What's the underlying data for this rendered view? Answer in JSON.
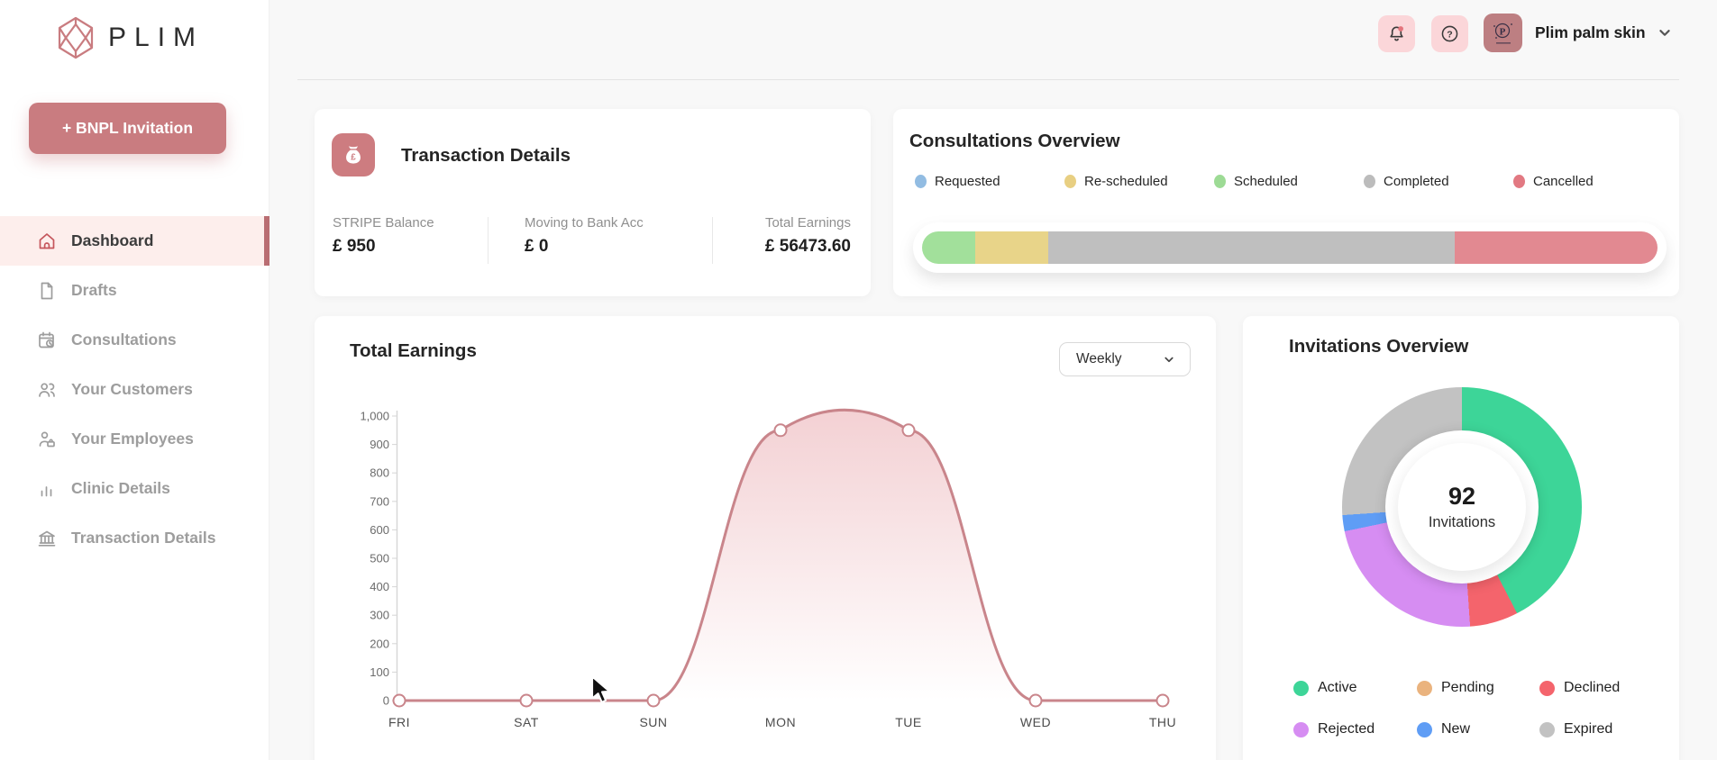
{
  "brand": {
    "name": "PLIM",
    "logo_icon": "gem-icon",
    "accent_color": "#c97c80"
  },
  "sidebar": {
    "cta_label": "+ BNPL Invitation",
    "items": [
      {
        "label": "Dashboard",
        "icon": "home-icon",
        "active": true
      },
      {
        "label": "Drafts",
        "icon": "document-icon",
        "active": false
      },
      {
        "label": "Consultations",
        "icon": "calendar-clock-icon",
        "active": false
      },
      {
        "label": "Your Customers",
        "icon": "people-icon",
        "active": false
      },
      {
        "label": "Your Employees",
        "icon": "person-badge-icon",
        "active": false
      },
      {
        "label": "Clinic Details",
        "icon": "bar-chart-icon",
        "active": false
      },
      {
        "label": "Transaction Details",
        "icon": "bank-icon",
        "active": false
      }
    ]
  },
  "topbar": {
    "notification_icon": "bell-icon",
    "help_icon": "question-icon",
    "account_name": "Plim palm skin",
    "caret_icon": "chevron-down-icon"
  },
  "transaction_card": {
    "icon": "money-bag-icon",
    "title": "Transaction Details",
    "stats": [
      {
        "label": "STRIPE Balance",
        "value": "£ 950"
      },
      {
        "label": "Moving to Bank Acc",
        "value": "£ 0"
      },
      {
        "label": "Total Earnings",
        "value": "£ 56473.60"
      }
    ]
  },
  "consultations_card": {
    "title": "Consultations Overview",
    "legend": [
      {
        "label": "Requested",
        "color": "#92bce2"
      },
      {
        "label": "Re-scheduled",
        "color": "#e8cf82"
      },
      {
        "label": "Scheduled",
        "color": "#9ddb95"
      },
      {
        "label": "Completed",
        "color": "#bcbcbc"
      },
      {
        "label": "Cancelled",
        "color": "#e27982"
      }
    ]
  },
  "earnings_card": {
    "title": "Total Earnings",
    "range_selected": "Weekly"
  },
  "invitations_card": {
    "title": "Invitations Overview",
    "total": "92",
    "total_label": "Invitations"
  },
  "chart_data": [
    {
      "id": "consultations-stacked-bar",
      "type": "bar",
      "stacked": true,
      "orientation": "horizontal",
      "unit": "percent",
      "segments": [
        {
          "label": "Scheduled",
          "percent": 7.2,
          "color": "#a2e09b"
        },
        {
          "label": "Re-scheduled",
          "percent": 10.0,
          "color": "#e8d489"
        },
        {
          "label": "Completed",
          "percent": 55.2,
          "color": "#bfbfbf"
        },
        {
          "label": "Cancelled",
          "percent": 27.6,
          "color": "#e28991"
        }
      ],
      "note": "Requested = 0"
    },
    {
      "id": "earnings-line",
      "type": "line",
      "title": "Total Earnings",
      "x": [
        "FRI",
        "SAT",
        "SUN",
        "MON",
        "TUE",
        "WED",
        "THU"
      ],
      "series": [
        {
          "name": "Total Earnings",
          "values": [
            0,
            0,
            0,
            950,
            950,
            0,
            0
          ]
        }
      ],
      "ylim": [
        0,
        1000
      ],
      "ytick_step": 100,
      "line_color": "#c9858b",
      "area_fill_top": "rgba(224,133,141,0.38)",
      "area_fill_bottom": "rgba(224,133,141,0)",
      "grid": false,
      "legend_position": "none"
    },
    {
      "id": "invitations-donut",
      "type": "pie",
      "donut": true,
      "total": 92,
      "start": "top",
      "direction": "clockwise",
      "slices": [
        {
          "name": "Active",
          "value": 39,
          "color": "#3dd598"
        },
        {
          "name": "Declined",
          "value": 6,
          "color": "#f4646c"
        },
        {
          "name": "Rejected",
          "value": 21,
          "color": "#d68df2"
        },
        {
          "name": "New",
          "value": 2,
          "color": "#5f9df5"
        },
        {
          "name": "Expired",
          "value": 24,
          "color": "#c2c2c2"
        },
        {
          "name": "Pending",
          "value": 0,
          "color": "#eab37e"
        }
      ]
    }
  ]
}
